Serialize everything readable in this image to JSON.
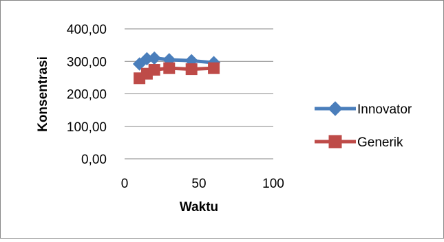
{
  "chart_data": {
    "type": "line",
    "xlabel": "Waktu",
    "ylabel": "Konsentrasi",
    "xlim": [
      0,
      100
    ],
    "ylim": [
      0,
      400
    ],
    "x_ticks": [
      0,
      50,
      100
    ],
    "x_tick_labels": [
      "0",
      "50",
      "100"
    ],
    "y_ticks": [
      0,
      100,
      200,
      300,
      400
    ],
    "y_tick_labels": [
      "0,00",
      "100,00",
      "200,00",
      "300,00",
      "400,00"
    ],
    "grid": "horizontal",
    "legend_position": "right",
    "series": [
      {
        "name": "Innovator",
        "color": "#4a7ebb",
        "marker": "diamond",
        "points": [
          {
            "x": 10,
            "y": 292
          },
          {
            "x": 15,
            "y": 308
          },
          {
            "x": 20,
            "y": 310
          },
          {
            "x": 30,
            "y": 305
          },
          {
            "x": 45,
            "y": 302
          },
          {
            "x": 60,
            "y": 296
          }
        ]
      },
      {
        "name": "Generik",
        "color": "#be4b48",
        "marker": "square",
        "points": [
          {
            "x": 10,
            "y": 248
          },
          {
            "x": 15,
            "y": 262
          },
          {
            "x": 20,
            "y": 274
          },
          {
            "x": 30,
            "y": 279
          },
          {
            "x": 45,
            "y": 276
          },
          {
            "x": 60,
            "y": 279
          }
        ]
      }
    ]
  }
}
